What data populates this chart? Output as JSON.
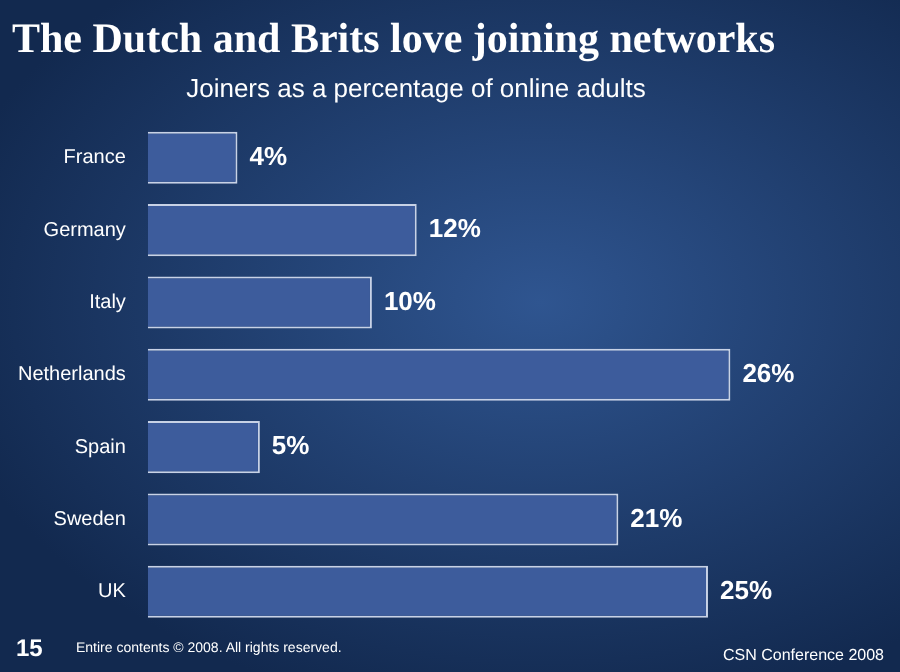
{
  "chart_data": {
    "type": "bar",
    "orientation": "horizontal",
    "title": "The Dutch and Brits love joining networks",
    "subtitle": "Joiners as a percentage of online adults",
    "categories": [
      "France",
      "Germany",
      "Italy",
      "Netherlands",
      "Spain",
      "Sweden",
      "UK"
    ],
    "values": [
      4,
      12,
      10,
      26,
      5,
      21,
      25
    ],
    "color": "#3d5c9c",
    "value_labels": [
      "4%",
      "12%",
      "10%",
      "26%",
      "5%",
      "21%",
      "25%"
    ],
    "annotations": [
      "15",
      "Entire contents © 2008. All rights reserved.",
      "CSN Conference 2008"
    ],
    "grid": false,
    "legend": false
  }
}
